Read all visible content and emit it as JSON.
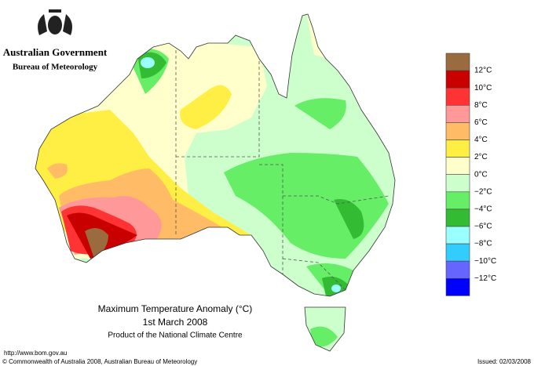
{
  "header": {
    "title": "Australian Government",
    "subtitle": "Bureau of Meteorology"
  },
  "map": {
    "title": "Maximum Temperature Anomaly (°C)",
    "date": "1st March 2008",
    "product": "Product of the National Climate Centre"
  },
  "legend": {
    "colors": [
      "#9a6b3e",
      "#c80000",
      "#ff3333",
      "#ff9999",
      "#ffbb66",
      "#ffee44",
      "#ffffcc",
      "#ccffcc",
      "#66ee66",
      "#33bb33",
      "#99ffff",
      "#33ccff",
      "#6666ff",
      "#0000ff"
    ],
    "labels": [
      "12°C",
      "10°C",
      "8°C",
      "6°C",
      "4°C",
      "2°C",
      "0°C",
      "−2°C",
      "−4°C",
      "−6°C",
      "−8°C",
      "−10°C",
      "−12°C"
    ]
  },
  "footer": {
    "url": "http://www.bom.gov.au",
    "copyright": "© Commonwealth of Australia 2008, Australian Bureau of Meteorology",
    "issued": "Issued: 02/03/2008"
  }
}
